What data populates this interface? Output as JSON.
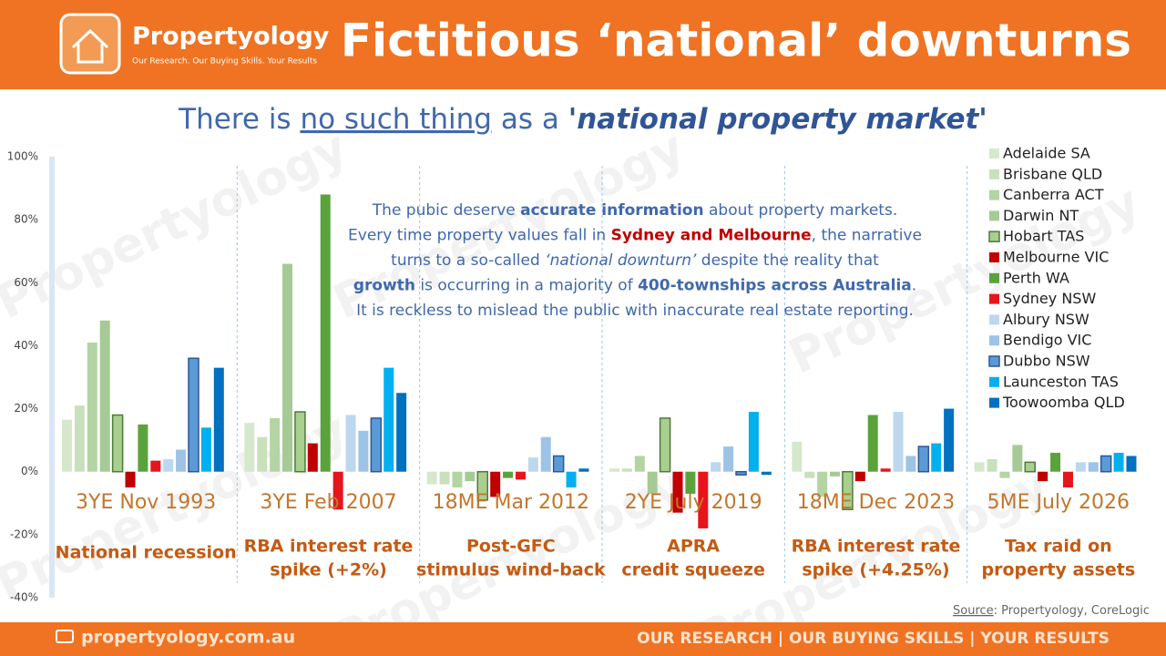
{
  "header": {
    "brand": "Propertyology",
    "tagline": "Our Research. Our Buying Skills. Your Results",
    "title": "Fictitious ‘national’ downturns"
  },
  "subtitle": [
    {
      "text": "There is "
    },
    {
      "text": "no such thing",
      "style": "underline"
    },
    {
      "text": " as a "
    },
    {
      "text": "'national property market'",
      "style": "bold-italic"
    }
  ],
  "note": [
    [
      {
        "text": "The pubic deserve "
      },
      {
        "text": "accurate information",
        "style": "bold"
      },
      {
        "text": " about property markets."
      }
    ],
    [
      {
        "text": "Every time property values fall in "
      },
      {
        "text": "Sydney and Melbourne",
        "style": "bold-red"
      },
      {
        "text": ", the narrative"
      }
    ],
    [
      {
        "text": "turns to a so-called "
      },
      {
        "text": "‘national downturn’",
        "style": "italic"
      },
      {
        "text": " despite the reality that"
      }
    ],
    [
      {
        "text": "growth",
        "style": "bold"
      },
      {
        "text": " is occurring in a majority of "
      },
      {
        "text": "400-townships across Australia",
        "style": "bold"
      },
      {
        "text": "."
      }
    ],
    [
      {
        "text": "It is reckless to mislead the public with inaccurate real estate reporting."
      }
    ]
  ],
  "chart_data": {
    "type": "bar",
    "categories": [
      "3YE Nov 1993",
      "3YE Feb 2007",
      "18ME Mar 2012",
      "2YE July 2019",
      "18ME Dec 2023",
      "5ME July 2026"
    ],
    "event_labels": [
      [
        "National recession"
      ],
      [
        "RBA interest rate",
        "spike (+2%)"
      ],
      [
        "Post-GFC",
        "stimulus wind-back"
      ],
      [
        "APRA",
        "credit squeeze"
      ],
      [
        "RBA interest rate",
        "spike (+4.25%)"
      ],
      [
        "Tax raid on",
        "property assets"
      ]
    ],
    "ylim": [
      -40,
      100
    ],
    "yticks": [
      {
        "value": -40,
        "label": "-40%"
      },
      {
        "value": -20,
        "label": "-20%"
      },
      {
        "value": 0,
        "label": "0%"
      },
      {
        "value": 20,
        "label": "20%"
      },
      {
        "value": 40,
        "label": "40%"
      },
      {
        "value": 60,
        "label": "60%"
      },
      {
        "value": 80,
        "label": "80%"
      },
      {
        "value": 100,
        "label": "100%"
      }
    ],
    "series": [
      {
        "name": "Adelaide SA",
        "color": "#d6e8cc",
        "values": [
          16.5,
          15.5,
          -4,
          1,
          9.5,
          3
        ]
      },
      {
        "name": "Brisbane QLD",
        "color": "#c9e0bd",
        "values": [
          21,
          11,
          -4,
          1,
          -2,
          4
        ]
      },
      {
        "name": "Canberra ACT",
        "color": "#b4d4a4",
        "values": [
          41,
          17,
          -5,
          5,
          -8,
          -2
        ]
      },
      {
        "name": "Darwin NT",
        "color": "#a6ca95",
        "values": [
          48,
          66,
          -3,
          -7,
          -1.5,
          8.5
        ]
      },
      {
        "name": "Hobart TAS",
        "color": "#a9cf8f",
        "edgecolor": "#4e7a3a",
        "values": [
          18,
          19,
          -9,
          17,
          -12,
          3
        ]
      },
      {
        "name": "Melbourne VIC",
        "color": "#c00000",
        "values": [
          -5,
          9,
          -8,
          -13,
          -3,
          -3
        ]
      },
      {
        "name": "Perth WA",
        "color": "#5aa33c",
        "values": [
          15,
          88,
          -2,
          -7,
          18,
          6
        ]
      },
      {
        "name": "Sydney NSW",
        "color": "#e8141c",
        "values": [
          3.5,
          -12,
          -2.5,
          -18,
          1,
          -5
        ]
      },
      {
        "name": "Albury NSW",
        "color": "#bdd7ee",
        "values": [
          4,
          18,
          4.5,
          3,
          19,
          3
        ]
      },
      {
        "name": "Bendigo VIC",
        "color": "#9dc3e6",
        "values": [
          7,
          13,
          11,
          8,
          5,
          3
        ]
      },
      {
        "name": "Dubbo NSW",
        "color": "#5b9bd5",
        "edgecolor": "#2f5597",
        "values": [
          36,
          17,
          5,
          -1,
          8,
          5
        ]
      },
      {
        "name": "Launceston TAS",
        "color": "#00b0f0",
        "values": [
          14,
          33,
          -5,
          19,
          9,
          6
        ]
      },
      {
        "name": "Toowoomba QLD",
        "color": "#0070c0",
        "values": [
          33,
          25,
          1,
          -1,
          20,
          5
        ]
      }
    ]
  },
  "source": {
    "label": "Source",
    "text": ": Propertyology, CoreLogic"
  },
  "footer": {
    "url": "propertyology.com.au",
    "slogan": "OUR RESEARCH | OUR BUYING SKILLS | YOUR RESULTS"
  },
  "watermark": "Propertyology"
}
